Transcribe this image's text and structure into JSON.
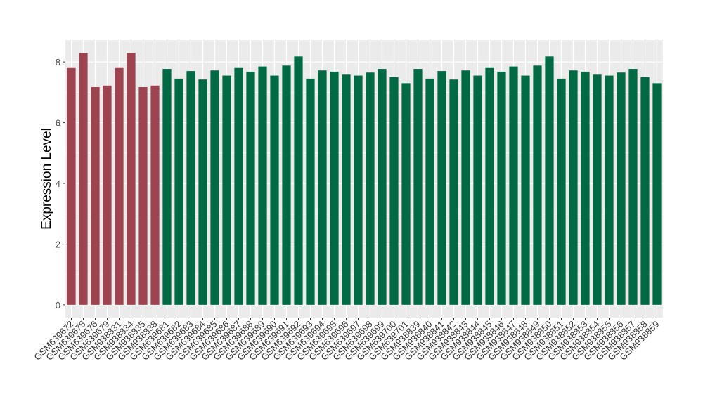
{
  "chart_data": {
    "type": "bar",
    "title": "",
    "xlabel": "",
    "ylabel": "Expression Level",
    "ylim": [
      -0.42,
      8.72
    ],
    "yticks": [
      0,
      2,
      4,
      6,
      8
    ],
    "grid": true,
    "colors": {
      "group1": "#9e4350",
      "group2": "#006a45",
      "panel": "#ebebeb"
    },
    "categories": [
      "GSM639672",
      "GSM639675",
      "GSM639676",
      "GSM639679",
      "GSM938831",
      "GSM938834",
      "GSM938835",
      "GSM938838",
      "GSM639681",
      "GSM639682",
      "GSM639683",
      "GSM639684",
      "GSM639685",
      "GSM639686",
      "GSM639687",
      "GSM639688",
      "GSM639689",
      "GSM639690",
      "GSM639691",
      "GSM639692",
      "GSM639693",
      "GSM639694",
      "GSM639695",
      "GSM639696",
      "GSM639697",
      "GSM639698",
      "GSM639699",
      "GSM639700",
      "GSM639701",
      "GSM938839",
      "GSM938840",
      "GSM938841",
      "GSM938842",
      "GSM938843",
      "GSM938844",
      "GSM938845",
      "GSM938846",
      "GSM938847",
      "GSM938848",
      "GSM938849",
      "GSM938850",
      "GSM938851",
      "GSM938852",
      "GSM938853",
      "GSM938854",
      "GSM938855",
      "GSM938856",
      "GSM938857",
      "GSM938858",
      "GSM938859"
    ],
    "values": [
      7.8,
      8.3,
      7.17,
      7.22,
      7.8,
      8.3,
      7.17,
      7.22,
      7.77,
      7.45,
      7.7,
      7.42,
      7.72,
      7.55,
      7.8,
      7.68,
      7.85,
      7.55,
      7.88,
      8.18,
      7.45,
      7.72,
      7.68,
      7.58,
      7.55,
      7.65,
      7.77,
      7.5,
      7.3,
      7.77,
      7.45,
      7.7,
      7.42,
      7.72,
      7.55,
      7.8,
      7.68,
      7.85,
      7.55,
      7.88,
      8.18,
      7.45,
      7.72,
      7.68,
      7.58,
      7.55,
      7.65,
      7.77,
      7.5,
      7.3
    ],
    "groups": [
      1,
      1,
      1,
      1,
      1,
      1,
      1,
      1,
      2,
      2,
      2,
      2,
      2,
      2,
      2,
      2,
      2,
      2,
      2,
      2,
      2,
      2,
      2,
      2,
      2,
      2,
      2,
      2,
      2,
      2,
      2,
      2,
      2,
      2,
      2,
      2,
      2,
      2,
      2,
      2,
      2,
      2,
      2,
      2,
      2,
      2,
      2,
      2,
      2,
      2
    ]
  }
}
